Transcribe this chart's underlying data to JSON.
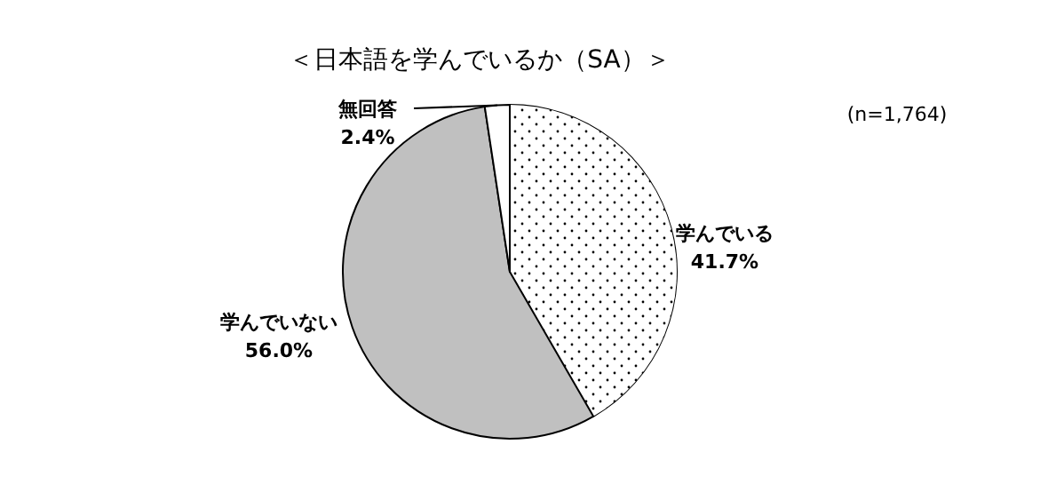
{
  "chart_data": {
    "type": "pie",
    "title": "＜日本語を学んでいるか（SA）＞",
    "annotations": [
      "(n=1,764)"
    ],
    "categories": [
      "学んでいる",
      "学んでいない",
      "無回答"
    ],
    "values": [
      41.7,
      56.0,
      2.4
    ],
    "colors": [
      "#ffffff",
      "#c0c0c0",
      "#ffffff"
    ],
    "value_labels": [
      "41.7%",
      "56.0%",
      "2.4%"
    ]
  }
}
